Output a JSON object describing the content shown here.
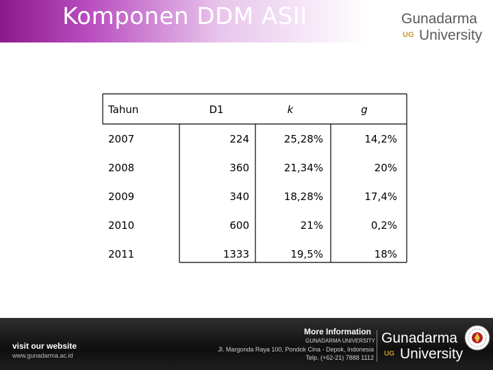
{
  "slide": {
    "title": "Komponen DDM ASII"
  },
  "logo": {
    "name": "Gunadarma",
    "ug": "UG",
    "university": "University"
  },
  "table": {
    "headers": [
      "Tahun",
      "D1",
      "k",
      "g"
    ],
    "rows": [
      [
        "2007",
        "224",
        "25,28%",
        "14,2%"
      ],
      [
        "2008",
        "360",
        "21,34%",
        "20%"
      ],
      [
        "2009",
        "340",
        "18,28%",
        "17,4%"
      ],
      [
        "2010",
        "600",
        "21%",
        "0,2%"
      ],
      [
        "2011",
        "1333",
        "19,5%",
        "18%"
      ]
    ]
  },
  "footer": {
    "visit": "visit our website",
    "url": "www.gunadarma.ac.id",
    "more_info": "More Information",
    "university_caps": "GUNADARMA UNIVERSITY",
    "address": "Jl. Margonda Raya 100, Pondok Cina - Depok, Indonesia",
    "telp": "Telp. (+62-21) 7888 1112",
    "logo_name": "Gunadarma",
    "logo_ug": "UG",
    "logo_university": "University"
  },
  "colors": {
    "header_purple": "#8a1a8c",
    "logo_gold": "#c89a2a",
    "footer_dark": "#1a1a1a"
  }
}
